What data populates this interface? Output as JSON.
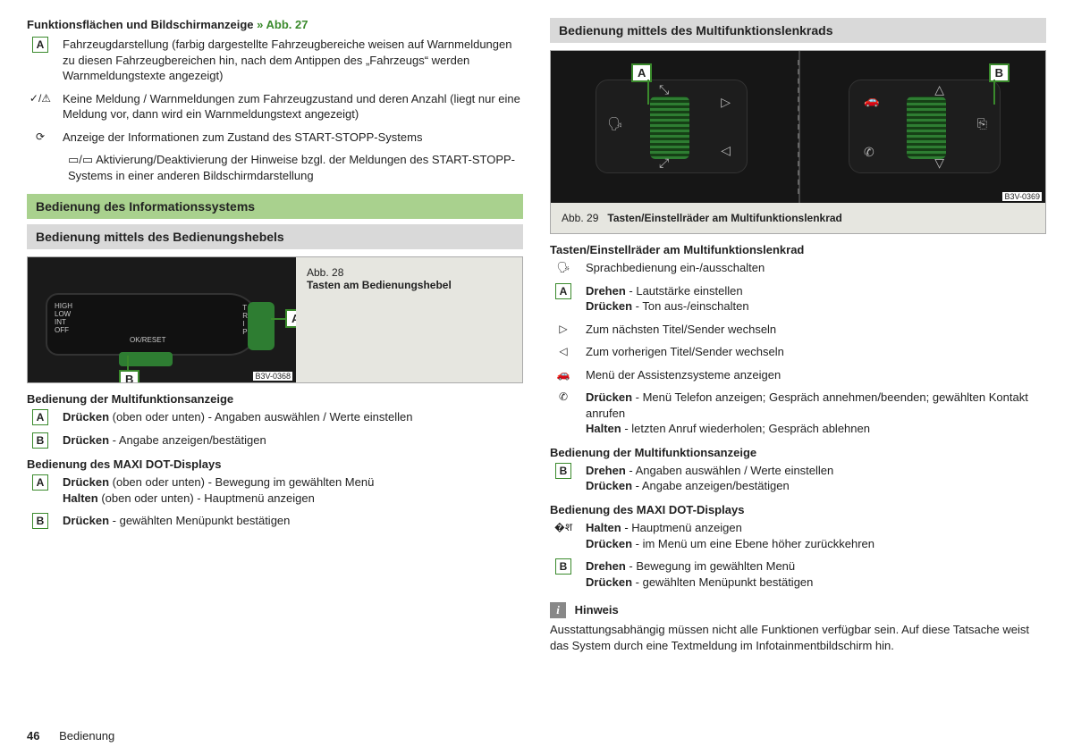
{
  "left": {
    "topHeading": "Funktionsflächen und Bildschirmanzeige",
    "topHeadingRef": "» Abb. 27",
    "items": [
      {
        "icon": "A",
        "iconType": "box",
        "text": "Fahrzeugdarstellung (farbig dargestellte Fahrzeugbereiche weisen auf Warnmeldungen zu diesen Fahrzeugbereichen hin, nach dem Antippen des „Fahrzeugs“ werden Warnmeldungstexte angezeigt)"
      },
      {
        "icon": "✓/⚠",
        "iconType": "sym",
        "text": "Keine Meldung / Warnmeldungen zum Fahrzeugzustand und deren Anzahl (liegt nur eine Meldung vor, dann wird ein Warnmeldungstext angezeigt)"
      },
      {
        "icon": "⟳",
        "iconType": "sym",
        "text": "Anzeige der Informationen zum Zustand des START-STOPP-Systems"
      }
    ],
    "extraIndent": "▭/▭ Aktivierung/Deaktivierung der Hinweise bzgl. der Meldungen des START-STOPP-Systems in einer anderen Bildschirmdarstellung",
    "greenTitle": "Bedienung des Informationssystems",
    "greyTitle": "Bedienung mittels des Bedienungshebels",
    "fig28": {
      "num": "Abb. 28",
      "title": "Tasten am Bedienungshebel",
      "code": "B3V-0368"
    },
    "sub1": "Bedienung der Multifunktionsanzeige",
    "sub1rows": [
      {
        "icon": "A",
        "html": "<b>Drücken</b> (oben oder unten) - Angaben auswählen / Werte einstellen"
      },
      {
        "icon": "B",
        "html": "<b>Drücken</b> - Angabe anzeigen/bestätigen"
      }
    ],
    "sub2": "Bedienung des MAXI DOT-Displays",
    "sub2rows": [
      {
        "icon": "A",
        "html": "<b>Drücken</b> (oben oder unten) - Bewegung im gewählten Menü<br><b>Halten</b> (oben oder unten) - Hauptmenü anzeigen"
      },
      {
        "icon": "B",
        "html": "<b>Drücken</b> - gewählten Menüpunkt bestätigen"
      }
    ]
  },
  "right": {
    "greyTitle": "Bedienung mittels des Multifunktionslenkrads",
    "fig29": {
      "num": "Abb. 29",
      "title": "Tasten/Einstellräder am Multifunktionslenkrad",
      "code": "B3V-0369"
    },
    "heading1": "Tasten/Einstellräder am Multifunktionslenkrad",
    "rows1": [
      {
        "icon": "🗣",
        "iconType": "sym",
        "html": "Sprachbedienung ein-/ausschalten"
      },
      {
        "icon": "A",
        "iconType": "box",
        "html": "<b>Drehen</b> - Lautstärke einstellen<br><b>Drücken</b> - Ton aus-/einschalten"
      },
      {
        "icon": "▷",
        "iconType": "sym",
        "html": "Zum nächsten Titel/Sender wechseln"
      },
      {
        "icon": "◁",
        "iconType": "sym",
        "html": "Zum vorherigen Titel/Sender wechseln"
      },
      {
        "icon": "🚗",
        "iconType": "sym",
        "html": "Menü der Assistenzsysteme anzeigen"
      },
      {
        "icon": "✆",
        "iconType": "sym",
        "html": "<b>Drücken</b> - Menü Telefon anzeigen; Gespräch annehmen/beenden; gewählten Kontakt anrufen<br><b>Halten</b> - letzten Anruf wiederholen; Gespräch ablehnen"
      }
    ],
    "heading2": "Bedienung der Multifunktionsanzeige",
    "rows2": [
      {
        "icon": "B",
        "iconType": "box",
        "html": "<b>Drehen</b> - Angaben auswählen / Werte einstellen<br><b>Drücken</b> - Angabe anzeigen/bestätigen"
      }
    ],
    "heading3": "Bedienung des MAXI DOT-Displays",
    "rows3": [
      {
        "icon": "�श",
        "iconType": "sym",
        "html": "<b>Halten</b> - Hauptmenü anzeigen<br><b>Drücken</b> - im Menü um eine Ebene höher zurückkehren"
      },
      {
        "icon": "B",
        "iconType": "box",
        "html": "<b>Drehen</b> - Bewegung im gewählten Menü<br><b>Drücken</b> - gewählten Menüpunkt bestätigen"
      }
    ],
    "hinweisLabel": "Hinweis",
    "hinweisText": "Ausstattungsabhängig müssen nicht alle Funktionen verfügbar sein. Auf diese Tatsache weist das System durch eine Textmeldung im Infotainmentbildschirm hin."
  },
  "footer": {
    "page": "46",
    "section": "Bedienung"
  },
  "colors": {
    "accent": "#3a8a2c",
    "greenBg": "#a9d18e",
    "greyBg": "#d9d9d9"
  }
}
